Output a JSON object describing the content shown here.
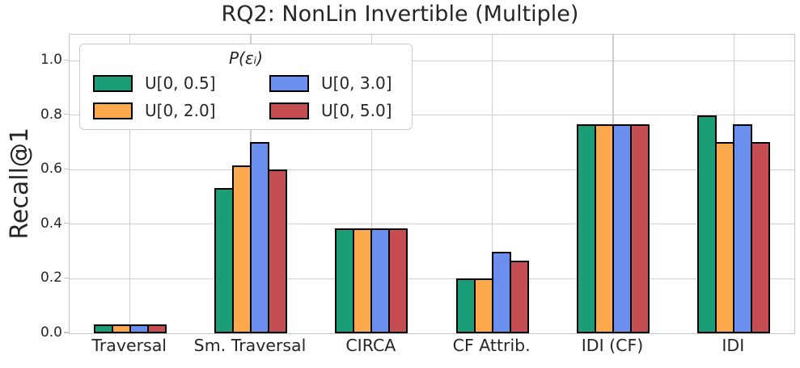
{
  "chart_data": {
    "type": "bar",
    "title": "RQ2: NonLin Invertible (Multiple)",
    "ylabel": "Recall@1",
    "xlabel": "",
    "legend_title": "P(εᵢ)",
    "legend_position": "upper left",
    "grid": true,
    "categories": [
      "Traversal",
      "Sm. Traversal",
      "CIRCA",
      "CF Attrib.",
      "IDI (CF)",
      "IDI"
    ],
    "series": [
      {
        "name": "U[0, 0.5]",
        "color": "#1b9e77",
        "values": [
          0.033,
          0.533,
          0.385,
          0.2,
          0.767,
          0.8
        ]
      },
      {
        "name": "U[0, 2.0]",
        "color": "#fca94e",
        "values": [
          0.033,
          0.617,
          0.385,
          0.2,
          0.767,
          0.7
        ]
      },
      {
        "name": "U[0, 3.0]",
        "color": "#6a8fee",
        "values": [
          0.033,
          0.7,
          0.385,
          0.3,
          0.767,
          0.767
        ]
      },
      {
        "name": "U[0, 5.0]",
        "color": "#c44e52",
        "values": [
          0.033,
          0.6,
          0.385,
          0.267,
          0.767,
          0.7
        ]
      }
    ],
    "yticks": [
      0.0,
      0.2,
      0.4,
      0.6,
      0.8,
      1.0
    ],
    "ylim": [
      0,
      1.095
    ],
    "bar_edge_color": "#000000",
    "grid_color": "#cfcfcf",
    "text_color": "#262626"
  }
}
